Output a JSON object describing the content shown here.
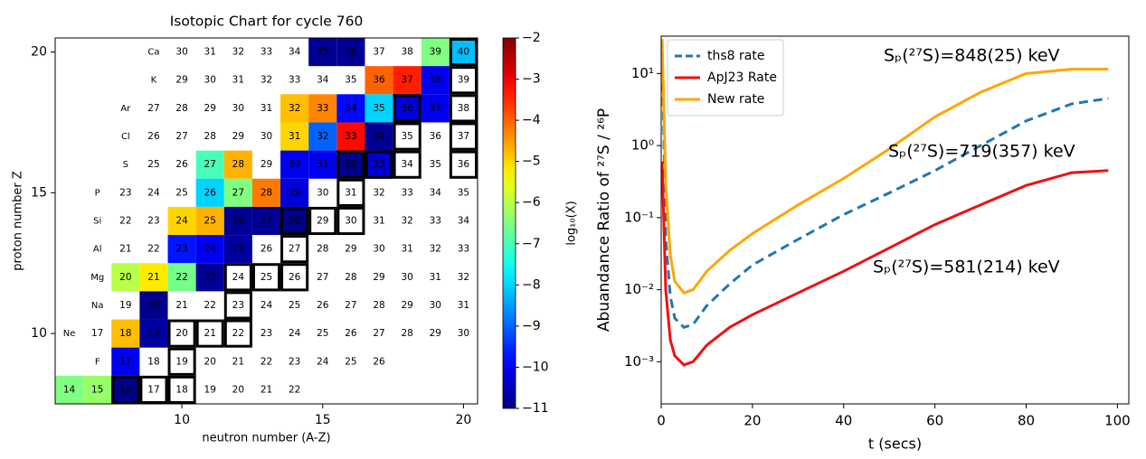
{
  "chart_data": [
    {
      "type": "heatmap",
      "title": "Isotopic Chart for cycle 760",
      "x_label": "neutron number (A-Z)",
      "y_label": "proton number Z",
      "xlim": [
        5.5,
        20.5
      ],
      "ylim": [
        7.5,
        20.5
      ],
      "xticks": [
        10,
        15,
        20
      ],
      "yticks": [
        10,
        15,
        20
      ],
      "colormap": "jet",
      "colorbar": {
        "label": "log₁₀(X)",
        "lim": [
          -11,
          -2
        ],
        "ticks": [
          {
            "value": -2,
            "label": "−2"
          },
          {
            "value": -3,
            "label": "−3"
          },
          {
            "value": -4,
            "label": "−4"
          },
          {
            "value": -5,
            "label": "−5"
          },
          {
            "value": -6,
            "label": "−6"
          },
          {
            "value": -7,
            "label": "−7"
          },
          {
            "value": -8,
            "label": "−8"
          },
          {
            "value": -9,
            "label": "−9"
          },
          {
            "value": -10,
            "label": "−10"
          },
          {
            "value": -11,
            "label": "−11"
          }
        ]
      },
      "rows": [
        {
          "z": 20,
          "symbol": "Ca",
          "symbol_n": 9,
          "mass_numbers": [
            30,
            31,
            32,
            33,
            34,
            35,
            36,
            37,
            38,
            39,
            40
          ],
          "values": [
            null,
            null,
            null,
            null,
            null,
            -10.8,
            -10.8,
            null,
            null,
            -6.5,
            -8.2
          ],
          "stable": [
            40
          ]
        },
        {
          "z": 19,
          "symbol": "K",
          "symbol_n": 9,
          "mass_numbers": [
            29,
            30,
            31,
            32,
            33,
            34,
            35,
            36,
            37,
            38,
            39
          ],
          "values": [
            null,
            null,
            null,
            null,
            null,
            null,
            null,
            -4,
            -3.4,
            -10,
            null
          ],
          "stable": [
            39
          ]
        },
        {
          "z": 18,
          "symbol": "Ar",
          "symbol_n": 8,
          "mass_numbers": [
            27,
            28,
            29,
            30,
            31,
            32,
            33,
            34,
            35,
            36,
            37,
            38
          ],
          "values": [
            null,
            null,
            null,
            null,
            null,
            -4.8,
            -4.3,
            -9.8,
            -8,
            -10.2,
            -10,
            null
          ],
          "stable": [
            36,
            38
          ]
        },
        {
          "z": 17,
          "symbol": "Cl",
          "symbol_n": 8,
          "mass_numbers": [
            26,
            27,
            28,
            29,
            30,
            31,
            32,
            33,
            34,
            35,
            36,
            37
          ],
          "values": [
            null,
            null,
            null,
            null,
            null,
            -5,
            -9,
            -3.2,
            -10.8,
            null,
            null,
            null
          ],
          "stable": [
            35,
            37
          ]
        },
        {
          "z": 16,
          "symbol": "S",
          "symbol_n": 8,
          "mass_numbers": [
            25,
            26,
            27,
            28,
            29,
            30,
            31,
            32,
            33,
            34,
            35,
            36
          ],
          "values": [
            null,
            null,
            -7,
            -4.7,
            null,
            -10,
            -10,
            -10.9,
            -10.3,
            null,
            null,
            null
          ],
          "stable": [
            32,
            33,
            34,
            36
          ]
        },
        {
          "z": 15,
          "symbol": "P",
          "symbol_n": 7,
          "mass_numbers": [
            23,
            24,
            25,
            26,
            27,
            28,
            29,
            30,
            31,
            32,
            33,
            34,
            35
          ],
          "values": [
            null,
            null,
            null,
            -8,
            -6.5,
            -4.2,
            -10.2,
            null,
            null,
            null,
            null,
            null,
            null
          ],
          "stable": [
            31
          ]
        },
        {
          "z": 14,
          "symbol": "Si",
          "symbol_n": 7,
          "mass_numbers": [
            22,
            23,
            24,
            25,
            26,
            27,
            28,
            29,
            30,
            31,
            32,
            33,
            34
          ],
          "values": [
            null,
            null,
            -5,
            -4.7,
            -10.8,
            -10.8,
            -10.9,
            null,
            null,
            null,
            null,
            null,
            null
          ],
          "stable": [
            28,
            29,
            30
          ]
        },
        {
          "z": 13,
          "symbol": "Al",
          "symbol_n": 7,
          "mass_numbers": [
            21,
            22,
            23,
            24,
            25,
            26,
            27,
            28,
            29,
            30,
            31,
            32,
            33
          ],
          "values": [
            null,
            null,
            -9.7,
            -10,
            -10.7,
            null,
            null,
            null,
            null,
            null,
            null,
            null,
            null
          ],
          "stable": [
            27
          ]
        },
        {
          "z": 12,
          "symbol": "Mg",
          "symbol_n": 7,
          "mass_numbers": [
            20,
            21,
            22,
            23,
            24,
            25,
            26,
            27,
            28,
            29,
            30,
            31,
            32
          ],
          "values": [
            -6,
            -5.2,
            -6.6,
            -10.8,
            null,
            null,
            null,
            null,
            null,
            null,
            null,
            null,
            null
          ],
          "stable": [
            24,
            25,
            26
          ]
        },
        {
          "z": 11,
          "symbol": "Na",
          "symbol_n": 7,
          "mass_numbers": [
            19,
            20,
            21,
            22,
            23,
            24,
            25,
            26,
            27,
            28,
            29,
            30,
            31
          ],
          "values": [
            null,
            -10.9,
            null,
            null,
            null,
            null,
            null,
            null,
            null,
            null,
            null,
            null,
            null
          ],
          "stable": [
            23
          ]
        },
        {
          "z": 10,
          "symbol": "Ne",
          "symbol_n": 6,
          "mass_numbers": [
            17,
            18,
            19,
            20,
            21,
            22,
            23,
            24,
            25,
            26,
            27,
            28,
            29,
            30
          ],
          "values": [
            null,
            -4.8,
            -10.7,
            null,
            null,
            null,
            null,
            null,
            null,
            null,
            null,
            null,
            null,
            null
          ],
          "stable": [
            20,
            21,
            22
          ]
        },
        {
          "z": 9,
          "symbol": "F",
          "symbol_n": 7,
          "mass_numbers": [
            17,
            18,
            19,
            20,
            21,
            22,
            23,
            24,
            25,
            26
          ],
          "values": [
            -10,
            null,
            null,
            null,
            null,
            null,
            null,
            null,
            null,
            null
          ],
          "stable": [
            19
          ]
        },
        {
          "z": 8,
          "mass_numbers": [
            14,
            15,
            16,
            17,
            18,
            19,
            20,
            21,
            22
          ],
          "values": [
            -6.5,
            -6.3,
            -10.9,
            null,
            null,
            null,
            null,
            null,
            null
          ],
          "stable": [
            16,
            17,
            18
          ]
        }
      ]
    },
    {
      "type": "line",
      "x_label": "t (secs)",
      "y_label": "Abuandance Ratio of ²⁷S / ²⁶P",
      "log_y": true,
      "legend": "upper left",
      "xlim": [
        0,
        102.5
      ],
      "ylim": [
        0.00026,
        33
      ],
      "xticks": [
        0,
        20,
        40,
        60,
        80,
        100
      ],
      "yticks": [
        {
          "value": 0.001,
          "label": "10⁻³"
        },
        {
          "value": 0.01,
          "label": "10⁻²"
        },
        {
          "value": 0.1,
          "label": "10⁻¹"
        },
        {
          "value": 1,
          "label": "10⁰"
        },
        {
          "value": 10,
          "label": "10¹"
        }
      ],
      "x": [
        0.2,
        1,
        2,
        3,
        5,
        7,
        10,
        15,
        20,
        30,
        40,
        50,
        60,
        70,
        80,
        90,
        98
      ],
      "series": [
        {
          "name": "ths8 rate",
          "color": "#1f77b4",
          "style": "dashed",
          "values": [
            30,
            0.05,
            0.008,
            0.004,
            0.003,
            0.0033,
            0.006,
            0.012,
            0.022,
            0.05,
            0.11,
            0.22,
            0.45,
            1.0,
            2.2,
            3.8,
            4.5
          ]
        },
        {
          "name": "ApJ23 Rate",
          "color": "#f01010",
          "style": "solid",
          "values": [
            0.6,
            0.01,
            0.002,
            0.0012,
            0.0009,
            0.001,
            0.0017,
            0.003,
            0.0045,
            0.009,
            0.018,
            0.038,
            0.08,
            0.15,
            0.28,
            0.42,
            0.45
          ]
        },
        {
          "name": "New rate",
          "color": "#ffa500",
          "style": "solid",
          "values": [
            30,
            0.3,
            0.03,
            0.013,
            0.009,
            0.01,
            0.018,
            0.035,
            0.06,
            0.15,
            0.35,
            0.9,
            2.5,
            5.5,
            10,
            11.5,
            11.5
          ]
        }
      ],
      "annotations": [
        {
          "text": "Sₚ(²⁷S)=848(25) keV",
          "color": "#f5a623"
        },
        {
          "text": "Sₚ(²⁷S)=719(357) keV",
          "color": "#5a9fd4"
        },
        {
          "text": "Sₚ(²⁷S)=581(214) keV",
          "color": "#f01010"
        }
      ]
    }
  ]
}
